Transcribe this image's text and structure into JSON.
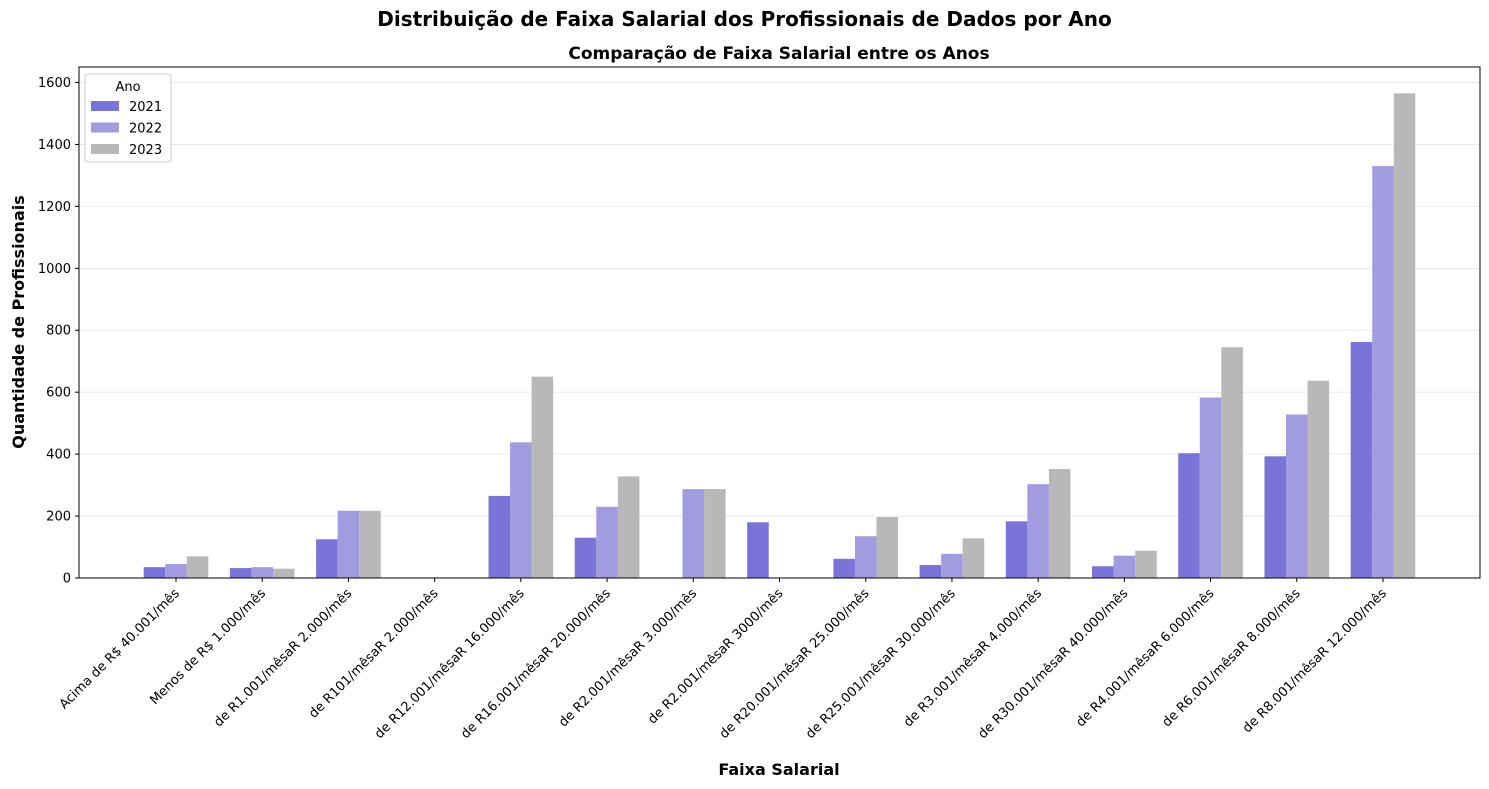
{
  "chart_data": {
    "type": "bar",
    "suptitle": "Distribuição de Faixa Salarial dos Profissionais de Dados por Ano",
    "title": "Comparação de Faixa Salarial entre os Anos",
    "xlabel": "Faixa Salarial",
    "ylabel": "Quantidade de Profissionais",
    "ylim": [
      0,
      1650
    ],
    "yticks": [
      0,
      200,
      400,
      600,
      800,
      1000,
      1200,
      1400,
      1600
    ],
    "grid": "y",
    "legend": {
      "title": "Ano",
      "placement": "upper-left"
    },
    "categories": [
      "Acima de R$ 40.001/mês",
      "Menos de R$ 1.000/mês",
      "de R1.001/mêsaR 2.000/mês",
      "de R101/mêsaR 2.000/mês",
      "de R12.001/mêsaR 16.000/mês",
      "de R16.001/mêsaR 20.000/mês",
      "de R2.001/mêsaR 3.000/mês",
      "de R2.001/mêsaR 3000/mês",
      "de R20.001/mêsaR 25.000/mês",
      "de R25.001/mêsaR 30.000/mês",
      "de R3.001/mêsaR 4.000/mês",
      "de R30.001/mêsaR 40.000/mês",
      "de R4.001/mêsaR 6.000/mês",
      "de R6.001/mêsaR 8.000/mês",
      "de R8.001/mêsaR 12.000/mês"
    ],
    "series": [
      {
        "name": "2021",
        "color": "#7b74d8",
        "values": [
          35,
          32,
          125,
          0,
          265,
          130,
          0,
          180,
          62,
          42,
          183,
          38,
          403,
          393,
          762
        ]
      },
      {
        "name": "2022",
        "color": "#a29be0",
        "values": [
          45,
          35,
          217,
          0,
          438,
          230,
          287,
          0,
          135,
          78,
          303,
          72,
          583,
          528,
          1330
        ]
      },
      {
        "name": "2023",
        "color": "#b8b8b8",
        "values": [
          70,
          30,
          217,
          0,
          650,
          328,
          287,
          0,
          197,
          128,
          352,
          88,
          745,
          637,
          1565
        ]
      }
    ]
  }
}
